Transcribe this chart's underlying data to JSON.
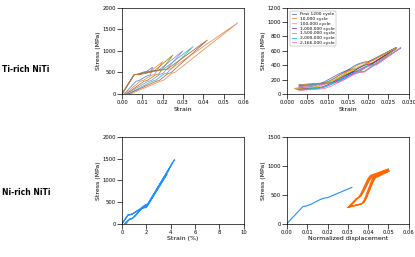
{
  "legend_labels": [
    "First 1200 cycle",
    "10,000 cycle",
    "100,000 cycle",
    "1,000,000 cycle",
    "1,500,000 cycle",
    "2,000,000 cycle",
    "2,166,000 cycle"
  ],
  "cycle_colors": [
    "#4472C4",
    "#ED7D31",
    "#C8C800",
    "#7030A0",
    "#6DAF6D",
    "#00B0F0",
    "#FF69B4"
  ],
  "row_labels": [
    "Ti-rich NiTi",
    "Ni-rich NiTi"
  ],
  "background": "#ffffff",
  "ti_tensile_colors": [
    "#4472C4",
    "#ED7D31",
    "#A0522D",
    "#808000",
    "#9370DB",
    "#20B2AA",
    "#FF8C00"
  ],
  "ni_blue": "#1E90FF",
  "ni_cyclic_blue": "#1E90FF",
  "ni_cyclic_orange": "#FF6600"
}
